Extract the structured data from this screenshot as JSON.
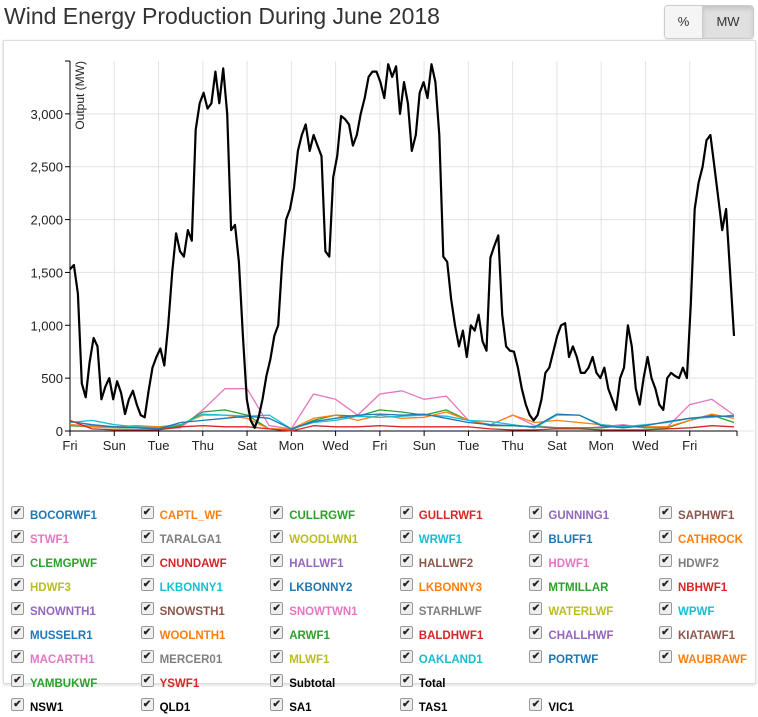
{
  "title": "Wind Energy Production During June 2018",
  "unit_buttons": {
    "percent": "%",
    "mw": "MW",
    "selected": "MW"
  },
  "chart_data": {
    "type": "line",
    "ylabel": "Output (MW)",
    "xlabel": "",
    "x_range": [
      "2018-06-01",
      "2018-07-01"
    ],
    "ylim": [
      0,
      3500
    ],
    "yticks": [
      0,
      500,
      1000,
      1500,
      2000,
      2500,
      3000
    ],
    "ytick_labels": [
      "0",
      "500",
      "1,000",
      "1,500",
      "2,000",
      "2,500",
      "3,000"
    ],
    "xticks_days": [
      0,
      2,
      4,
      6,
      8,
      10,
      12,
      14,
      16,
      18,
      20,
      22,
      24,
      26,
      28
    ],
    "xtick_labels": [
      "Fri",
      "Sun",
      "Tue",
      "Thu",
      "Sat",
      "Mon",
      "Wed",
      "Fri",
      "Sun",
      "Tue",
      "Thu",
      "Sat",
      "Mon",
      "Wed",
      "Fri"
    ],
    "grid": true,
    "series": [
      {
        "name": "Total",
        "color": "#000000",
        "values": [
          1530,
          1570,
          1300,
          450,
          320,
          650,
          880,
          800,
          300,
          420,
          500,
          300,
          470,
          360,
          160,
          300,
          380,
          250,
          150,
          130,
          380,
          600,
          700,
          780,
          620,
          1000,
          1500,
          1870,
          1700,
          1650,
          1900,
          1800,
          2850,
          3100,
          3200,
          3050,
          3100,
          3400,
          3100,
          3430,
          3000,
          1900,
          1950,
          1600,
          900,
          300,
          100,
          30,
          130,
          300,
          520,
          680,
          900,
          1000,
          1600,
          2000,
          2100,
          2300,
          2650,
          2800,
          2900,
          2650,
          2800,
          2700,
          2600,
          1700,
          1650,
          2400,
          2600,
          2980,
          2950,
          2900,
          2700,
          2800,
          3000,
          3150,
          3350,
          3400,
          3400,
          3300,
          3150,
          3470,
          3350,
          3450,
          3000,
          3300,
          3100,
          2650,
          2800,
          3200,
          3300,
          3150,
          3470,
          3300,
          2800,
          1650,
          1600,
          1250,
          1000,
          800,
          950,
          700,
          1000,
          950,
          1100,
          850,
          760,
          1640,
          1750,
          1850,
          1100,
          800,
          760,
          750,
          600,
          400,
          250,
          150,
          100,
          150,
          300,
          550,
          600,
          750,
          900,
          1000,
          1020,
          700,
          800,
          700,
          550,
          550,
          600,
          700,
          550,
          500,
          600,
          400,
          300,
          200,
          500,
          600,
          1000,
          800,
          400,
          250,
          500,
          700,
          500,
          400,
          250,
          200,
          500,
          550,
          520,
          500,
          600,
          500,
          1200,
          2100,
          2350,
          2500,
          2750,
          2800,
          2500,
          2200,
          1900,
          2100,
          1500,
          900
        ]
      },
      {
        "name": "STWF1",
        "color": "#e377c2",
        "values": [
          60,
          50,
          40,
          50,
          20,
          30,
          200,
          400,
          400,
          50,
          20,
          350,
          300,
          150,
          350,
          380,
          300,
          330,
          100,
          60,
          150,
          50,
          30,
          20,
          40,
          60,
          30,
          40,
          250,
          300,
          150
        ]
      },
      {
        "name": "CULLRGWF",
        "color": "#2ca02c",
        "values": [
          50,
          40,
          30,
          30,
          20,
          50,
          180,
          200,
          150,
          20,
          10,
          100,
          150,
          140,
          200,
          180,
          150,
          200,
          100,
          50,
          50,
          40,
          30,
          30,
          30,
          50,
          30,
          30,
          100,
          150,
          80
        ]
      },
      {
        "name": "CAPTL_WF",
        "color": "#ff7f0e",
        "values": [
          60,
          40,
          30,
          50,
          40,
          60,
          150,
          150,
          120,
          20,
          20,
          120,
          150,
          100,
          150,
          120,
          130,
          180,
          100,
          60,
          150,
          80,
          100,
          80,
          60,
          40,
          40,
          40,
          100,
          160,
          120
        ]
      },
      {
        "name": "WRWF1",
        "color": "#17becf",
        "values": [
          80,
          100,
          60,
          40,
          30,
          60,
          160,
          150,
          140,
          150,
          20,
          80,
          100,
          140,
          130,
          140,
          150,
          140,
          100,
          90,
          60,
          30,
          150,
          150,
          60,
          40,
          60,
          80,
          120,
          130,
          150
        ]
      },
      {
        "name": "BOCORWF1",
        "color": "#1f77b4",
        "values": [
          90,
          60,
          40,
          30,
          20,
          80,
          100,
          120,
          140,
          120,
          20,
          90,
          120,
          150,
          160,
          150,
          160,
          120,
          80,
          60,
          50,
          40,
          160,
          150,
          50,
          30,
          50,
          90,
          120,
          140,
          140
        ]
      },
      {
        "name": "GULLRWF1",
        "color": "#d62728",
        "values": [
          100,
          20,
          10,
          10,
          10,
          40,
          50,
          40,
          40,
          20,
          0,
          50,
          40,
          40,
          50,
          40,
          40,
          40,
          40,
          20,
          10,
          10,
          20,
          20,
          10,
          10,
          10,
          20,
          30,
          50,
          40
        ]
      }
    ]
  },
  "legend": [
    {
      "label": "BOCORWF1",
      "color": "#1f77b4"
    },
    {
      "label": "CAPTL_WF",
      "color": "#ff7f0e"
    },
    {
      "label": "CULLRGWF",
      "color": "#2ca02c"
    },
    {
      "label": "GULLRWF1",
      "color": "#d62728"
    },
    {
      "label": "GUNNING1",
      "color": "#9467bd"
    },
    {
      "label": "SAPHWF1",
      "color": "#8c564b"
    },
    {
      "label": "STWF1",
      "color": "#e377c2"
    },
    {
      "label": "TARALGA1",
      "color": "#7f7f7f"
    },
    {
      "label": "WOODLWN1",
      "color": "#bcbd22"
    },
    {
      "label": "WRWF1",
      "color": "#17becf"
    },
    {
      "label": "BLUFF1",
      "color": "#1f77b4"
    },
    {
      "label": "CATHROCK",
      "color": "#ff7f0e"
    },
    {
      "label": "CLEMGPWF",
      "color": "#2ca02c"
    },
    {
      "label": "CNUNDAWF",
      "color": "#d62728"
    },
    {
      "label": "HALLWF1",
      "color": "#9467bd"
    },
    {
      "label": "HALLWF2",
      "color": "#8c564b"
    },
    {
      "label": "HDWF1",
      "color": "#e377c2"
    },
    {
      "label": "HDWF2",
      "color": "#7f7f7f"
    },
    {
      "label": "HDWF3",
      "color": "#bcbd22"
    },
    {
      "label": "LKBONNY1",
      "color": "#17becf"
    },
    {
      "label": "LKBONNY2",
      "color": "#1f77b4"
    },
    {
      "label": "LKBONNY3",
      "color": "#ff7f0e"
    },
    {
      "label": "MTMILLAR",
      "color": "#2ca02c"
    },
    {
      "label": "NBHWF1",
      "color": "#d62728"
    },
    {
      "label": "SNOWNTH1",
      "color": "#9467bd"
    },
    {
      "label": "SNOWSTH1",
      "color": "#8c564b"
    },
    {
      "label": "SNOWTWN1",
      "color": "#e377c2"
    },
    {
      "label": "STARHLWF",
      "color": "#7f7f7f"
    },
    {
      "label": "WATERLWF",
      "color": "#bcbd22"
    },
    {
      "label": "WPWF",
      "color": "#17becf"
    },
    {
      "label": "MUSSELR1",
      "color": "#1f77b4"
    },
    {
      "label": "WOOLNTH1",
      "color": "#ff7f0e"
    },
    {
      "label": "ARWF1",
      "color": "#2ca02c"
    },
    {
      "label": "BALDHWF1",
      "color": "#d62728"
    },
    {
      "label": "CHALLHWF",
      "color": "#9467bd"
    },
    {
      "label": "KIATAWF1",
      "color": "#8c564b"
    },
    {
      "label": "MACARTH1",
      "color": "#e377c2"
    },
    {
      "label": "MERCER01",
      "color": "#7f7f7f"
    },
    {
      "label": "MLWF1",
      "color": "#bcbd22"
    },
    {
      "label": "OAKLAND1",
      "color": "#17becf"
    },
    {
      "label": "PORTWF",
      "color": "#1f77b4"
    },
    {
      "label": "WAUBRAWF",
      "color": "#ff7f0e"
    },
    {
      "label": "YAMBUKWF",
      "color": "#2ca02c"
    },
    {
      "label": "YSWF1",
      "color": "#d62728"
    },
    {
      "label": "Subtotal",
      "color": "#000000"
    },
    {
      "label": "Total",
      "color": "#000000"
    },
    {
      "label": "NSW1",
      "color": "#000000",
      "row_start": true
    },
    {
      "label": "QLD1",
      "color": "#000000"
    },
    {
      "label": "SA1",
      "color": "#000000"
    },
    {
      "label": "TAS1",
      "color": "#000000"
    },
    {
      "label": "VIC1",
      "color": "#000000"
    }
  ],
  "legend_checked": true,
  "check_glyph": "✔"
}
